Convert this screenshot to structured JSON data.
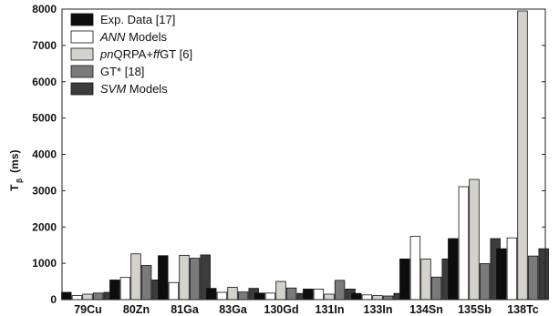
{
  "chart_data": {
    "type": "bar",
    "ylabel_main": "T",
    "ylabel_sub": "β",
    "ylabel_unit": "(ms)",
    "ylim": [
      0,
      8000
    ],
    "yticks": [
      "0",
      "1000",
      "2000",
      "3000",
      "4000",
      "5000",
      "6000",
      "7000",
      "8000"
    ],
    "ytick_values": [
      0,
      1000,
      2000,
      3000,
      4000,
      5000,
      6000,
      7000,
      8000
    ],
    "categories": [
      "79Cu",
      "80Zn",
      "81Ga",
      "83Ga",
      "130Gd",
      "131In",
      "133In",
      "134Sn",
      "135Sb",
      "138Tc"
    ],
    "legend_position": "top-left",
    "grid": false,
    "series": [
      {
        "name": "Exp. Data [17]",
        "legend_parts": [
          {
            "text": "Exp. Data [17]",
            "italic": false
          }
        ],
        "color": "#0d0d0d",
        "values": [
          200,
          540,
          1210,
          310,
          180,
          290,
          170,
          1120,
          1680,
          1400
        ]
      },
      {
        "name": "ANN Models",
        "legend_parts": [
          {
            "text": "ANN",
            "italic": true
          },
          {
            "text": " Models",
            "italic": false
          }
        ],
        "color": "#ffffff",
        "values": [
          110,
          610,
          470,
          200,
          180,
          290,
          130,
          1740,
          3110,
          1700
        ]
      },
      {
        "name": "pnQRPA+ffGT [6]",
        "legend_parts": [
          {
            "text": "pn",
            "italic": true
          },
          {
            "text": "QRPA+",
            "italic": false
          },
          {
            "text": "ff",
            "italic": true
          },
          {
            "text": "GT [6]",
            "italic": false
          }
        ],
        "color": "#d4d2cc",
        "values": [
          150,
          1260,
          1220,
          340,
          500,
          150,
          110,
          1120,
          3310,
          7950
        ]
      },
      {
        "name": "GT* [18]",
        "legend_parts": [
          {
            "text": "GT* [18]",
            "italic": false
          }
        ],
        "color": "#7a7a7a",
        "values": [
          180,
          940,
          1140,
          210,
          320,
          530,
          100,
          620,
          990,
          1200
        ]
      },
      {
        "name": "SVM Models",
        "legend_parts": [
          {
            "text": "SVM",
            "italic": true
          },
          {
            "text": " Models",
            "italic": false
          }
        ],
        "color": "#3c3c3c",
        "values": [
          200,
          540,
          1230,
          310,
          170,
          290,
          170,
          1120,
          1680,
          1400
        ]
      }
    ]
  }
}
